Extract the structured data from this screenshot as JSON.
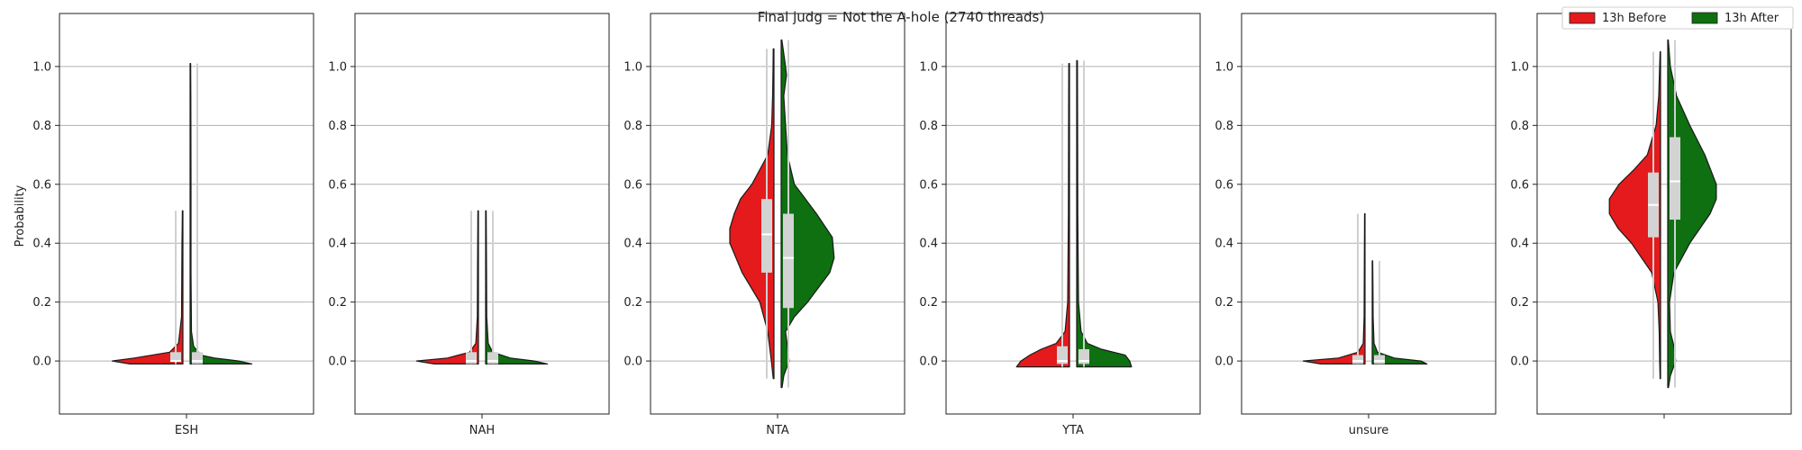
{
  "figure": {
    "title": "Final judg = Not the A-hole (2740 threads)",
    "ylabel": "Probability",
    "legend": {
      "placement": "top-right",
      "entries": [
        {
          "label": "13h Before",
          "color": "#e41a1c"
        },
        {
          "label": "13h After",
          "color": "#0e7011"
        }
      ]
    }
  },
  "chart_data": {
    "type": "violin",
    "split": true,
    "grid": "horizontal",
    "ylim": [
      -0.18,
      1.18
    ],
    "yticks": [
      0.0,
      0.2,
      0.4,
      0.6,
      0.8,
      1.0
    ],
    "yticklabels": [
      "0.0",
      "0.2",
      "0.4",
      "0.6",
      "0.8",
      "1.0"
    ],
    "series": [
      {
        "name": "13h Before",
        "color": "#e41a1c"
      },
      {
        "name": "13h After",
        "color": "#0e7011"
      }
    ],
    "panels": [
      {
        "xlabel": "ESH",
        "groups": [
          {
            "series": "13h Before",
            "range": [
              -0.01,
              0.51
            ],
            "quartiles": [
              0.0,
              0.0,
              0.03
            ],
            "density": [
              [
                -0.01,
                0.6
              ],
              [
                0.0,
                0.8
              ],
              [
                0.01,
                0.55
              ],
              [
                0.03,
                0.15
              ],
              [
                0.06,
                0.05
              ],
              [
                0.15,
                0.015
              ],
              [
                0.3,
                0.012
              ],
              [
                0.4,
                0.01
              ],
              [
                0.45,
                0.008
              ],
              [
                0.51,
                0.006
              ]
            ]
          },
          {
            "series": "13h After",
            "range": [
              -0.01,
              1.01
            ],
            "quartiles": [
              -0.01,
              0.0,
              0.03
            ],
            "density": [
              [
                -0.01,
                0.7
              ],
              [
                0.0,
                0.55
              ],
              [
                0.01,
                0.28
              ],
              [
                0.02,
                0.12
              ],
              [
                0.05,
                0.04
              ],
              [
                0.1,
                0.015
              ],
              [
                0.3,
                0.01
              ],
              [
                0.6,
                0.01
              ],
              [
                0.9,
                0.008
              ],
              [
                1.01,
                0.006
              ]
            ]
          }
        ]
      },
      {
        "xlabel": "NAH",
        "groups": [
          {
            "series": "13h Before",
            "range": [
              -0.01,
              0.51
            ],
            "quartiles": [
              -0.01,
              0.0,
              0.03
            ],
            "density": [
              [
                -0.01,
                0.5
              ],
              [
                0.0,
                0.7
              ],
              [
                0.01,
                0.35
              ],
              [
                0.03,
                0.1
              ],
              [
                0.06,
                0.03
              ],
              [
                0.15,
                0.012
              ],
              [
                0.3,
                0.01
              ],
              [
                0.51,
                0.006
              ]
            ]
          },
          {
            "series": "13h After",
            "range": [
              -0.01,
              0.51
            ],
            "quartiles": [
              -0.01,
              0.0,
              0.03
            ],
            "density": [
              [
                -0.01,
                0.7
              ],
              [
                0.0,
                0.55
              ],
              [
                0.01,
                0.28
              ],
              [
                0.03,
                0.08
              ],
              [
                0.06,
                0.03
              ],
              [
                0.15,
                0.012
              ],
              [
                0.3,
                0.01
              ],
              [
                0.51,
                0.006
              ]
            ]
          }
        ]
      },
      {
        "xlabel": "NTA",
        "groups": [
          {
            "series": "13h Before",
            "range": [
              -0.06,
              1.06
            ],
            "quartiles": [
              0.3,
              0.43,
              0.55
            ],
            "density": [
              [
                -0.06,
                0.008
              ],
              [
                0.0,
                0.03
              ],
              [
                0.1,
                0.07
              ],
              [
                0.2,
                0.16
              ],
              [
                0.3,
                0.36
              ],
              [
                0.4,
                0.5
              ],
              [
                0.45,
                0.5
              ],
              [
                0.5,
                0.45
              ],
              [
                0.55,
                0.38
              ],
              [
                0.6,
                0.25
              ],
              [
                0.7,
                0.07
              ],
              [
                0.8,
                0.025
              ],
              [
                0.9,
                0.015
              ],
              [
                1.0,
                0.01
              ],
              [
                1.06,
                0.008
              ]
            ]
          },
          {
            "series": "13h After",
            "range": [
              -0.09,
              1.09
            ],
            "quartiles": [
              0.18,
              0.35,
              0.5
            ],
            "density": [
              [
                -0.09,
                0.01
              ],
              [
                -0.05,
                0.03
              ],
              [
                0.0,
                0.09
              ],
              [
                0.05,
                0.07
              ],
              [
                0.1,
                0.05
              ],
              [
                0.15,
                0.15
              ],
              [
                0.2,
                0.3
              ],
              [
                0.3,
                0.55
              ],
              [
                0.35,
                0.6
              ],
              [
                0.42,
                0.58
              ],
              [
                0.5,
                0.4
              ],
              [
                0.6,
                0.15
              ],
              [
                0.7,
                0.07
              ],
              [
                0.8,
                0.05
              ],
              [
                0.9,
                0.03
              ],
              [
                0.97,
                0.06
              ],
              [
                1.0,
                0.05
              ],
              [
                1.09,
                0.008
              ]
            ]
          }
        ]
      },
      {
        "xlabel": "YTA",
        "groups": [
          {
            "series": "13h Before",
            "range": [
              -0.02,
              1.01
            ],
            "quartiles": [
              -0.01,
              0.0,
              0.05
            ],
            "density": [
              [
                -0.02,
                0.6
              ],
              [
                0.0,
                0.55
              ],
              [
                0.02,
                0.45
              ],
              [
                0.04,
                0.32
              ],
              [
                0.06,
                0.15
              ],
              [
                0.1,
                0.05
              ],
              [
                0.2,
                0.02
              ],
              [
                0.5,
                0.012
              ],
              [
                0.8,
                0.01
              ],
              [
                1.01,
                0.008
              ]
            ]
          },
          {
            "series": "13h After",
            "range": [
              -0.02,
              1.02
            ],
            "quartiles": [
              -0.01,
              0.0,
              0.04
            ],
            "density": [
              [
                -0.02,
                0.62
              ],
              [
                0.0,
                0.6
              ],
              [
                0.02,
                0.55
              ],
              [
                0.04,
                0.28
              ],
              [
                0.06,
                0.12
              ],
              [
                0.1,
                0.05
              ],
              [
                0.2,
                0.02
              ],
              [
                0.5,
                0.012
              ],
              [
                0.8,
                0.01
              ],
              [
                1.02,
                0.008
              ]
            ]
          }
        ]
      },
      {
        "xlabel": "unsure",
        "groups": [
          {
            "series": "13h Before",
            "range": [
              -0.01,
              0.5
            ],
            "quartiles": [
              -0.01,
              0.0,
              0.02
            ],
            "density": [
              [
                -0.01,
                0.5
              ],
              [
                0.0,
                0.7
              ],
              [
                0.01,
                0.3
              ],
              [
                0.03,
                0.08
              ],
              [
                0.06,
                0.02
              ],
              [
                0.15,
                0.01
              ],
              [
                0.3,
                0.008
              ],
              [
                0.5,
                0.005
              ]
            ]
          },
          {
            "series": "13h After",
            "range": [
              -0.01,
              0.34
            ],
            "quartiles": [
              -0.01,
              0.0,
              0.02
            ],
            "density": [
              [
                -0.01,
                0.62
              ],
              [
                0.0,
                0.55
              ],
              [
                0.01,
                0.25
              ],
              [
                0.03,
                0.06
              ],
              [
                0.06,
                0.02
              ],
              [
                0.15,
                0.01
              ],
              [
                0.25,
                0.008
              ],
              [
                0.34,
                0.005
              ]
            ]
          }
        ]
      },
      {
        "xlabel": "",
        "groups": [
          {
            "series": "13h Before",
            "range": [
              -0.06,
              1.05
            ],
            "quartiles": [
              0.42,
              0.53,
              0.64
            ],
            "density": [
              [
                -0.06,
                0.005
              ],
              [
                0.0,
                0.01
              ],
              [
                0.1,
                0.015
              ],
              [
                0.2,
                0.03
              ],
              [
                0.3,
                0.1
              ],
              [
                0.4,
                0.33
              ],
              [
                0.45,
                0.48
              ],
              [
                0.5,
                0.58
              ],
              [
                0.55,
                0.58
              ],
              [
                0.6,
                0.47
              ],
              [
                0.65,
                0.3
              ],
              [
                0.7,
                0.15
              ],
              [
                0.8,
                0.05
              ],
              [
                0.9,
                0.02
              ],
              [
                1.0,
                0.01
              ],
              [
                1.05,
                0.005
              ]
            ]
          },
          {
            "series": "13h After",
            "range": [
              -0.09,
              1.09
            ],
            "quartiles": [
              0.48,
              0.61,
              0.76
            ],
            "density": [
              [
                -0.09,
                0.008
              ],
              [
                -0.05,
                0.03
              ],
              [
                0.0,
                0.09
              ],
              [
                0.05,
                0.07
              ],
              [
                0.1,
                0.03
              ],
              [
                0.2,
                0.02
              ],
              [
                0.3,
                0.07
              ],
              [
                0.4,
                0.25
              ],
              [
                0.5,
                0.48
              ],
              [
                0.55,
                0.55
              ],
              [
                0.6,
                0.55
              ],
              [
                0.7,
                0.42
              ],
              [
                0.8,
                0.25
              ],
              [
                0.9,
                0.1
              ],
              [
                1.0,
                0.03
              ],
              [
                1.09,
                0.006
              ]
            ]
          }
        ]
      }
    ]
  }
}
